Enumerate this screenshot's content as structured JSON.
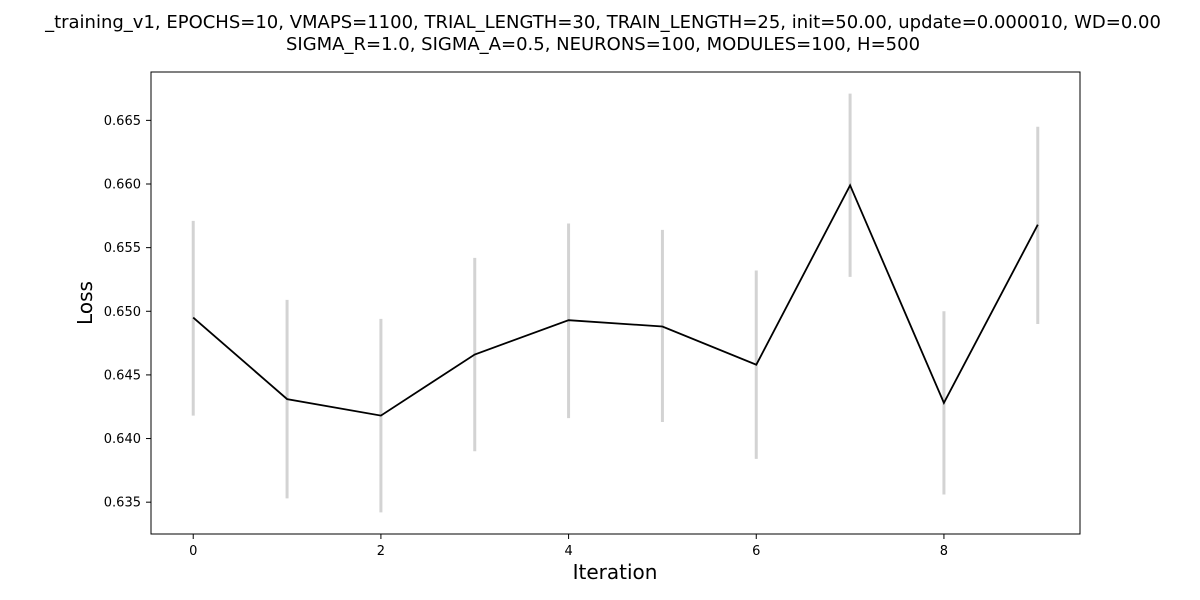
{
  "chart_data": {
    "type": "line",
    "title_lines": [
      "_training_v1, EPOCHS=10, VMAPS=1100, TRIAL_LENGTH=30, TRAIN_LENGTH=25, init=50.00, update=0.000010, WD=0.00",
      "SIGMA_R=1.0, SIGMA_A=0.5, NEURONS=100, MODULES=100, H=500"
    ],
    "xlabel": "Iteration",
    "ylabel": "Loss",
    "x": [
      0,
      1,
      2,
      3,
      4,
      5,
      6,
      7,
      8,
      9
    ],
    "xlim": [
      -0.45,
      9.45
    ],
    "ylim": [
      0.6325,
      0.6688
    ],
    "xticks": [
      0,
      2,
      4,
      6,
      8
    ],
    "yticks": [
      0.635,
      0.64,
      0.645,
      0.65,
      0.655,
      0.66,
      0.665
    ],
    "ytick_labels": [
      "0.635",
      "0.640",
      "0.645",
      "0.650",
      "0.655",
      "0.660",
      "0.665"
    ],
    "grid": false,
    "series": [
      {
        "values": [
          0.6495,
          0.6431,
          0.6418,
          0.6466,
          0.6493,
          0.6488,
          0.6458,
          0.6599,
          0.6428,
          0.6568
        ],
        "error_low": [
          0.6418,
          0.6353,
          0.6342,
          0.639,
          0.6416,
          0.6413,
          0.6384,
          0.6527,
          0.6356,
          0.649
        ],
        "error_high": [
          0.6571,
          0.6509,
          0.6494,
          0.6542,
          0.6569,
          0.6564,
          0.6532,
          0.6671,
          0.65,
          0.6645
        ],
        "line_color": "#000000",
        "errorbar_color": "#d3d3d3"
      }
    ]
  }
}
